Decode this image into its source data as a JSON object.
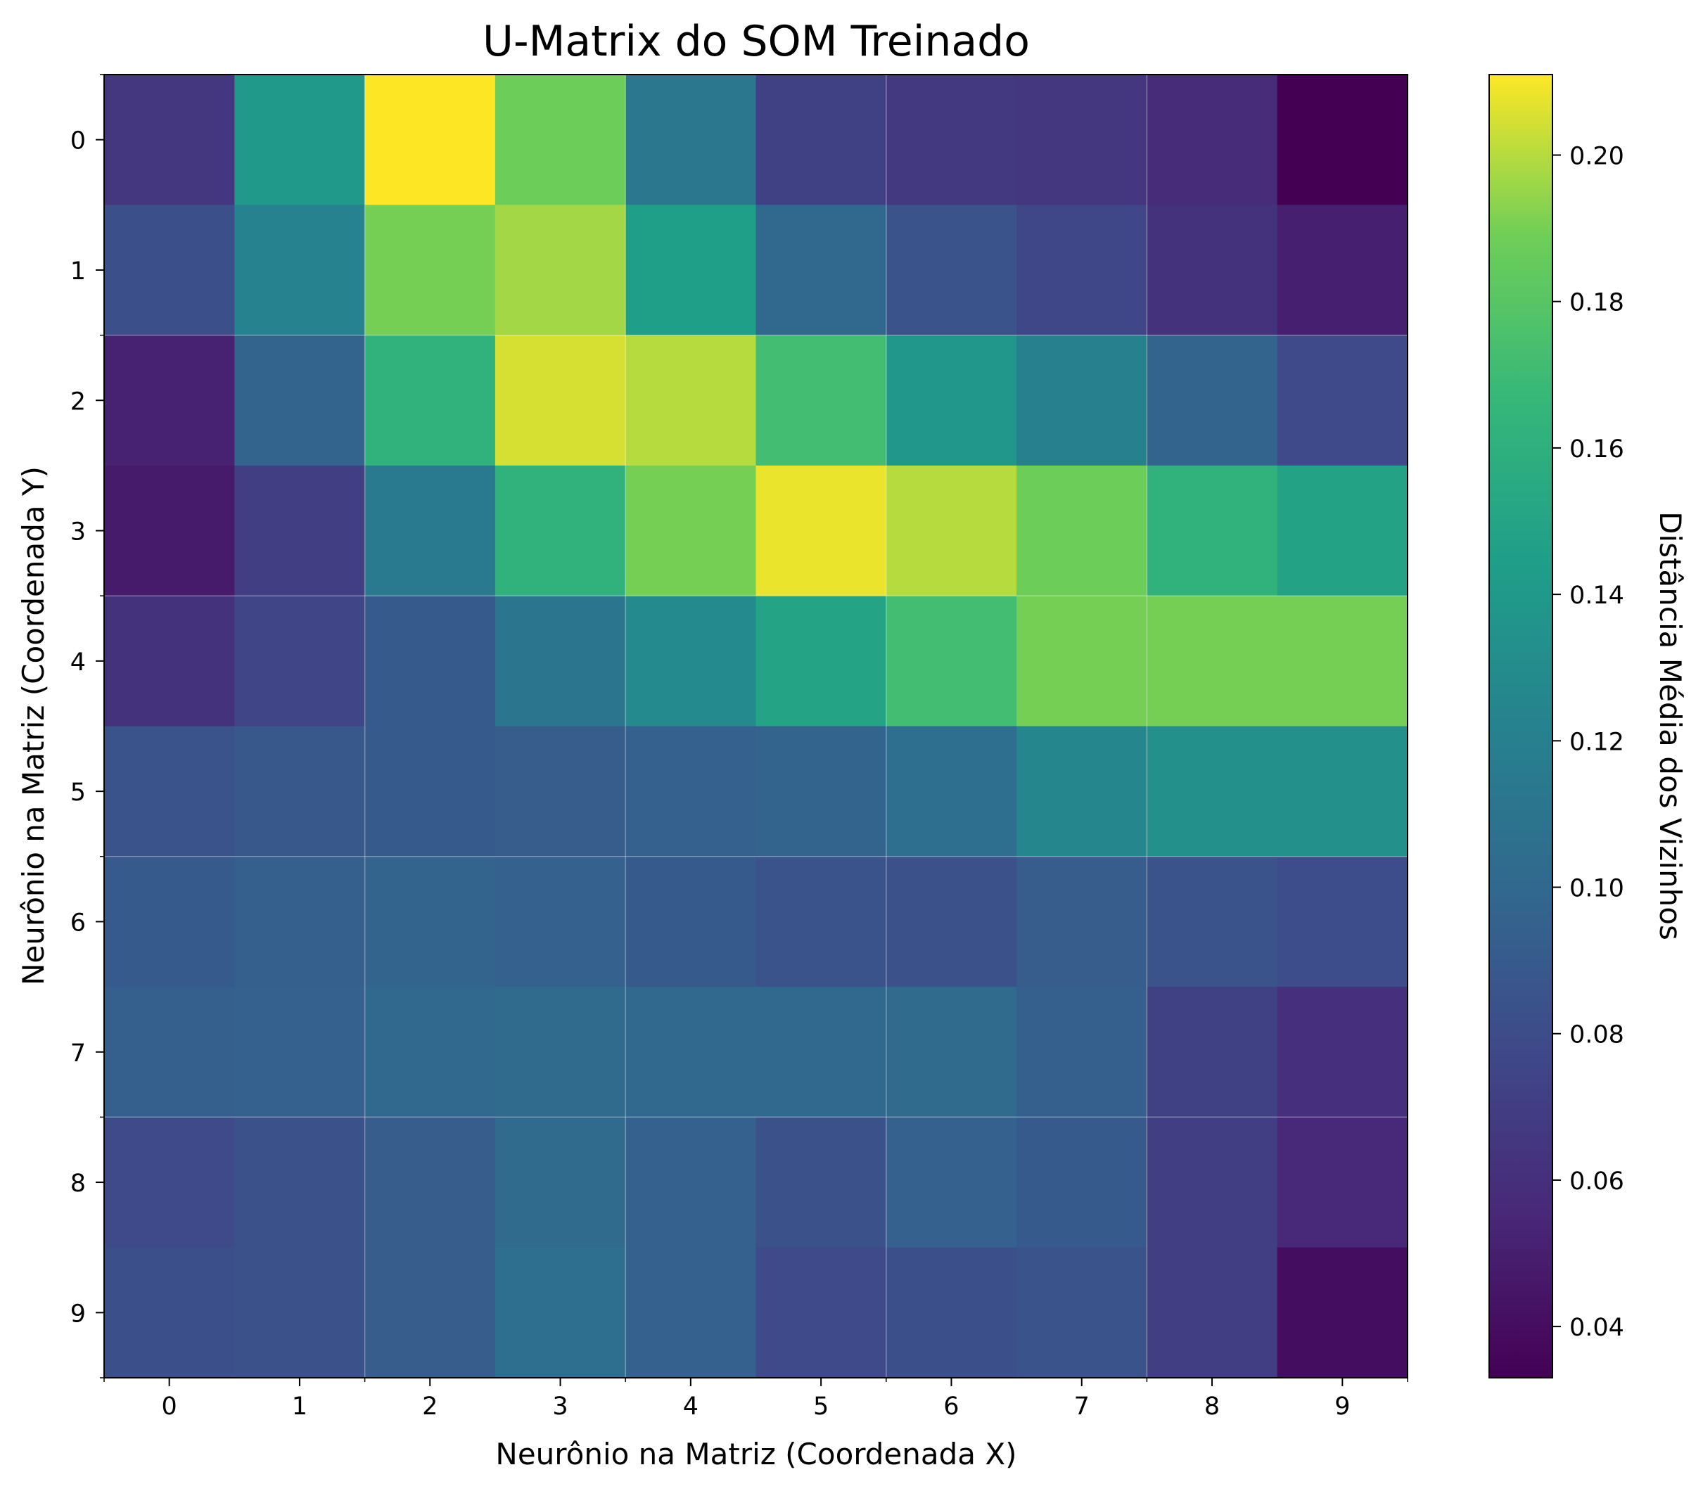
{
  "chart_data": {
    "type": "heatmap",
    "title": "U-Matrix do SOM Treinado",
    "xlabel": "Neurônio na Matriz (Coordenada X)",
    "ylabel": "Neurônio na Matriz (Coordenada Y)",
    "x_ticks": [
      "0",
      "1",
      "2",
      "3",
      "4",
      "5",
      "6",
      "7",
      "8",
      "9"
    ],
    "y_ticks": [
      "0",
      "1",
      "2",
      "3",
      "4",
      "5",
      "6",
      "7",
      "8",
      "9"
    ],
    "colormap": "viridis",
    "grid": true,
    "colorbar": {
      "label": "Distância Média dos Vizinhos",
      "range": [
        0.033,
        0.211
      ],
      "ticks": [
        "0.04",
        "0.06",
        "0.08",
        "0.10",
        "0.12",
        "0.14",
        "0.16",
        "0.18",
        "0.20"
      ],
      "tick_values": [
        0.04,
        0.06,
        0.08,
        0.1,
        0.12,
        0.14,
        0.16,
        0.18,
        0.2
      ]
    },
    "values": [
      [
        0.065,
        0.14,
        0.211,
        0.188,
        0.113,
        0.072,
        0.067,
        0.065,
        0.058,
        0.033
      ],
      [
        0.082,
        0.122,
        0.19,
        0.197,
        0.145,
        0.1,
        0.085,
        0.076,
        0.062,
        0.05
      ],
      [
        0.052,
        0.097,
        0.162,
        0.205,
        0.2,
        0.172,
        0.138,
        0.12,
        0.097,
        0.078
      ],
      [
        0.048,
        0.07,
        0.115,
        0.162,
        0.19,
        0.208,
        0.2,
        0.188,
        0.162,
        0.148
      ],
      [
        0.062,
        0.075,
        0.09,
        0.112,
        0.128,
        0.15,
        0.172,
        0.19,
        0.19,
        0.19
      ],
      [
        0.085,
        0.088,
        0.09,
        0.092,
        0.095,
        0.097,
        0.105,
        0.125,
        0.133,
        0.133
      ],
      [
        0.09,
        0.093,
        0.097,
        0.095,
        0.09,
        0.085,
        0.083,
        0.092,
        0.085,
        0.08
      ],
      [
        0.093,
        0.095,
        0.1,
        0.102,
        0.1,
        0.1,
        0.102,
        0.093,
        0.072,
        0.06
      ],
      [
        0.078,
        0.083,
        0.092,
        0.102,
        0.095,
        0.083,
        0.095,
        0.09,
        0.07,
        0.055
      ],
      [
        0.082,
        0.083,
        0.092,
        0.105,
        0.095,
        0.078,
        0.082,
        0.085,
        0.07,
        0.04
      ]
    ]
  }
}
